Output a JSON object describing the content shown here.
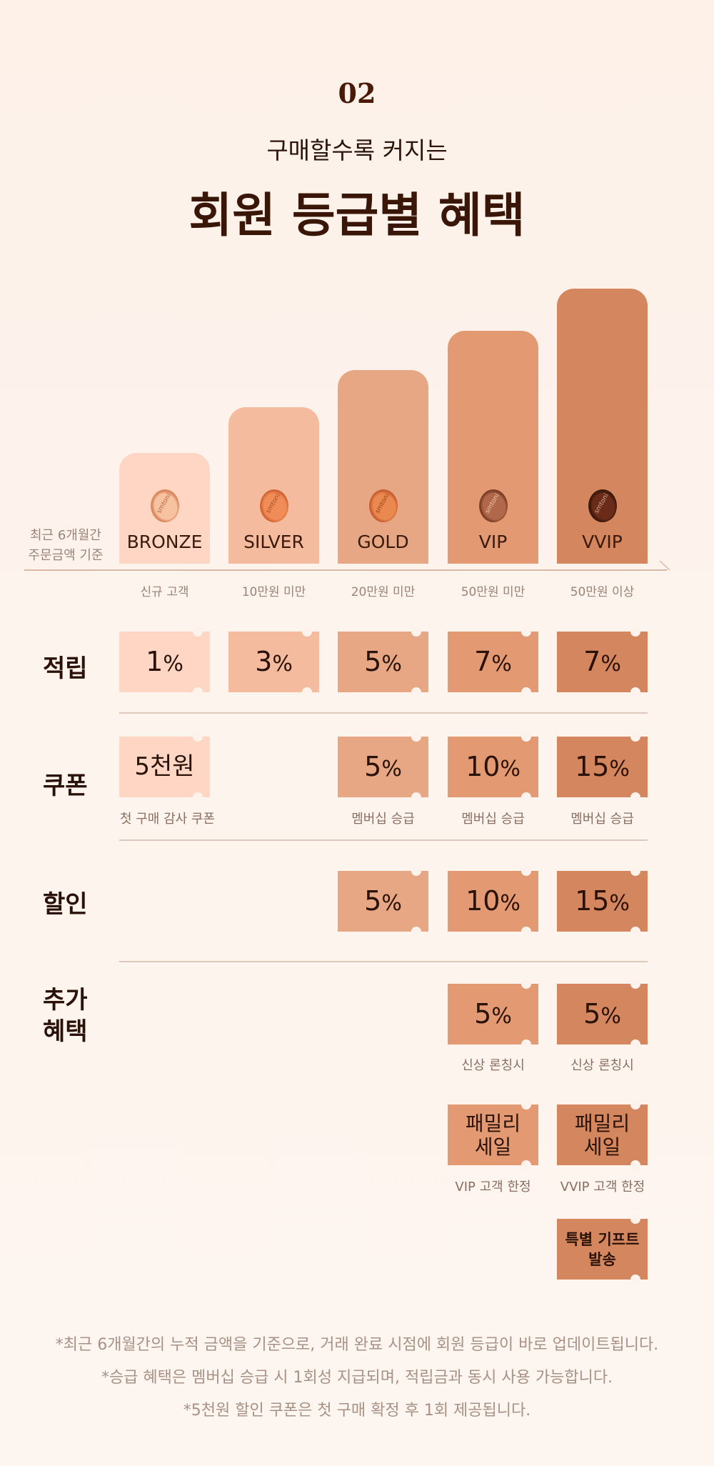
{
  "header": {
    "number": "02",
    "subtitle": "구매할수록 커지는",
    "title": "회원 등급별 혜택"
  },
  "criteria_label": [
    "최근 6개월간",
    "주문금액 기준"
  ],
  "tiers": [
    {
      "name": "BRONZE",
      "criteria": "신규 고객",
      "bar_color": "#fed6c3",
      "coin": "smtoni"
    },
    {
      "name": "SILVER",
      "criteria": "10만원 미만",
      "bar_color": "#f5bb9e",
      "coin": "smtoni"
    },
    {
      "name": "GOLD",
      "criteria": "20만원 미만",
      "bar_color": "#e8a784",
      "coin": "smtoni"
    },
    {
      "name": "VIP",
      "criteria": "50만원 미만",
      "bar_color": "#e39a73",
      "coin": "smtoni"
    },
    {
      "name": "VVIP",
      "criteria": "50만원 이상",
      "bar_color": "#d4865f",
      "coin": "smtoni"
    }
  ],
  "rows": {
    "points": {
      "label": "적립",
      "values": [
        {
          "num": "1",
          "unit": "%"
        },
        {
          "num": "3",
          "unit": "%"
        },
        {
          "num": "5",
          "unit": "%"
        },
        {
          "num": "7",
          "unit": "%"
        },
        {
          "num": "7",
          "unit": "%"
        }
      ]
    },
    "coupon": {
      "label": "쿠폰",
      "bronze": {
        "value": "5천원",
        "caption": "첫 구매 감사 쿠폰"
      },
      "gold": {
        "num": "5",
        "unit": "%",
        "caption": "멤버십 승급"
      },
      "vip": {
        "num": "10",
        "unit": "%",
        "caption": "멤버십 승급"
      },
      "vvip": {
        "num": "15",
        "unit": "%",
        "caption": "멤버십 승급"
      }
    },
    "discount": {
      "label": "할인",
      "gold": {
        "num": "5",
        "unit": "%"
      },
      "vip": {
        "num": "10",
        "unit": "%"
      },
      "vvip": {
        "num": "15",
        "unit": "%"
      }
    },
    "extra": {
      "label": [
        "추가",
        "혜택"
      ],
      "vip_launch": {
        "num": "5",
        "unit": "%",
        "caption": "신상 론칭시"
      },
      "vvip_launch": {
        "num": "5",
        "unit": "%",
        "caption": "신상 론칭시"
      },
      "vip_family": {
        "lines": [
          "패밀리",
          "세일"
        ],
        "caption": "VIP 고객 한정"
      },
      "vvip_family": {
        "lines": [
          "패밀리",
          "세일"
        ],
        "caption": "VVIP 고객 한정"
      },
      "vvip_gift": {
        "lines": [
          "특별 기프트",
          "발송"
        ]
      }
    }
  },
  "footnotes": [
    "*최근 6개월간의 누적 금액을 기준으로, 거래 완료 시점에 회원 등급이 바로 업데이트됩니다.",
    "*승급 혜택은 멤버십 승급 시 1회성 지급되며, 적립금과 동시 사용 가능합니다.",
    "*5천원 할인 쿠폰은 첫 구매 확정 후 1회 제공됩니다."
  ]
}
